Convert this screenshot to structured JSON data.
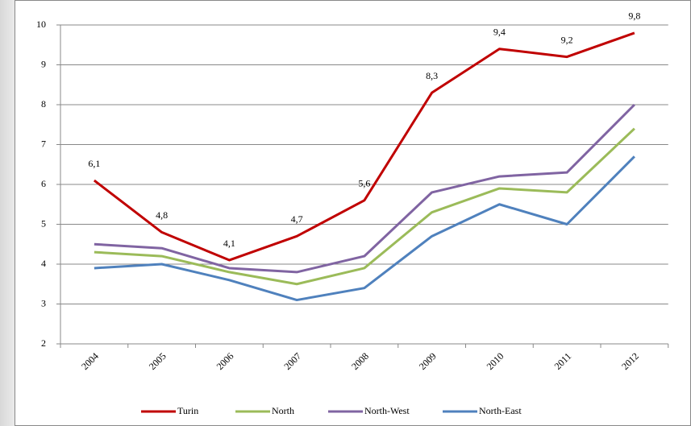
{
  "chart_data": {
    "type": "line",
    "categories": [
      "2004",
      "2005",
      "2006",
      "2007",
      "2008",
      "2009",
      "2010",
      "2011",
      "2012"
    ],
    "series": [
      {
        "name": "Turin",
        "color": "#c00000",
        "values": [
          6.1,
          4.8,
          4.1,
          4.7,
          5.6,
          8.3,
          9.4,
          9.2,
          9.8
        ],
        "value_labels": [
          "6,1",
          "4,8",
          "4,1",
          "4,7",
          "5,6",
          "8,3",
          "9,4",
          "9,2",
          "9,8"
        ]
      },
      {
        "name": "North",
        "color": "#9bbb59",
        "values": [
          4.3,
          4.2,
          3.8,
          3.5,
          3.9,
          5.3,
          5.9,
          5.8,
          7.4
        ]
      },
      {
        "name": "North-West",
        "color": "#8064a2",
        "values": [
          4.5,
          4.4,
          3.9,
          3.8,
          4.2,
          5.8,
          6.2,
          6.3,
          8.0
        ]
      },
      {
        "name": "North-East",
        "color": "#4f81bd",
        "values": [
          3.9,
          4.0,
          3.6,
          3.1,
          3.4,
          4.7,
          5.5,
          5.0,
          6.7
        ]
      }
    ],
    "ylim": [
      2,
      10
    ],
    "yticks": [
      2,
      3,
      4,
      5,
      6,
      7,
      8,
      9,
      10
    ],
    "grid": true,
    "legend": "bottom"
  }
}
